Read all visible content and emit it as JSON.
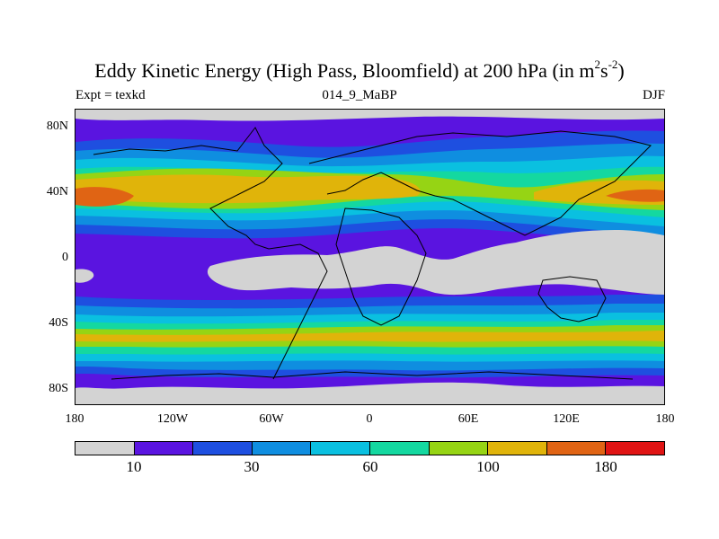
{
  "title": {
    "main": "Eddy Kinetic Energy (High Pass, Bloomfield) at 200 hPa (in m",
    "sup1": "2",
    "mid": "s",
    "sup2": "-2",
    "close": ")"
  },
  "experiment_label": "Expt = texkd",
  "experiment_name": "014_9_MaBP",
  "season": "DJF",
  "axes": {
    "y_ticks": [
      "80N",
      "40N",
      "0",
      "40S",
      "80S"
    ],
    "x_ticks": [
      "180",
      "120W",
      "60W",
      "0",
      "60E",
      "120E",
      "180"
    ]
  },
  "colorbar": {
    "colors": [
      "#d3d3d3",
      "#5a14e0",
      "#1e4fe0",
      "#0f8ee0",
      "#0ac0e0",
      "#14d8a0",
      "#96d414",
      "#e0b40a",
      "#e06414",
      "#e01414"
    ],
    "labels": [
      "10",
      "30",
      "60",
      "100",
      "180"
    ]
  },
  "map": {
    "colors": {
      "lowest": "#d3d3d3",
      "band1": "#5a14e0",
      "band2": "#1e4fe0",
      "band3": "#0f8ee0",
      "band4": "#0ac0e0",
      "band5": "#14d8a0",
      "band6": "#96d414",
      "band7": "#e0b40a",
      "band8": "#e06414",
      "coast": "#000000"
    }
  }
}
